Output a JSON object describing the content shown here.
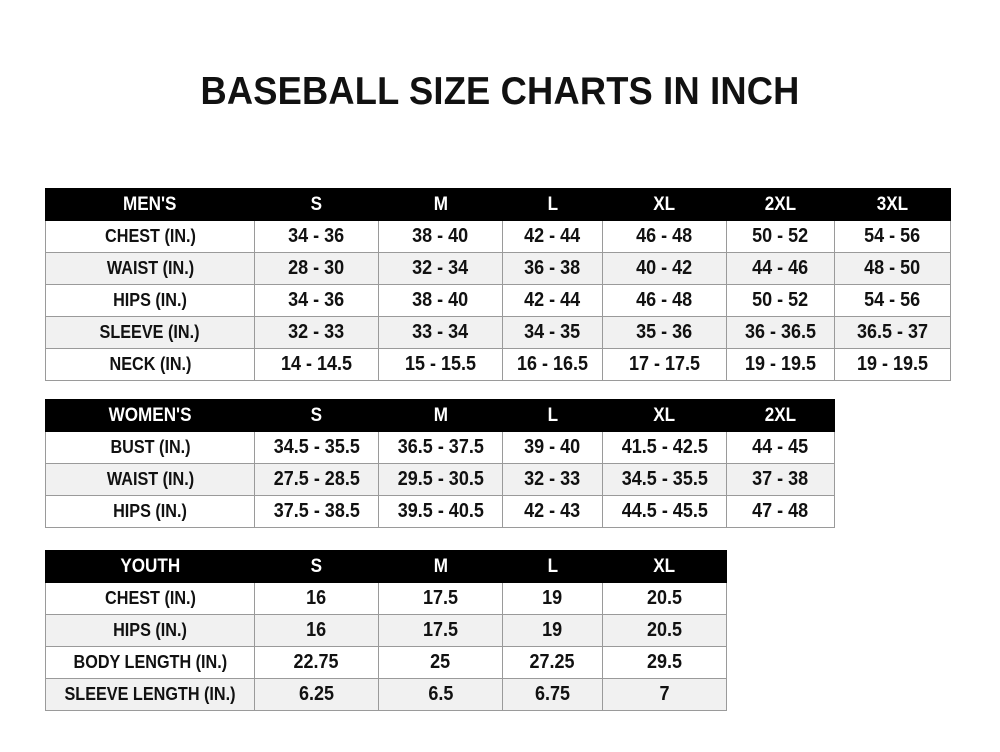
{
  "title": "BASEBALL SIZE CHARTS IN INCH",
  "tables": [
    {
      "id": "men",
      "header": [
        "MEN'S",
        "S",
        "M",
        "L",
        "XL",
        "2XL",
        "3XL"
      ],
      "rows": [
        [
          "CHEST (IN.)",
          "34 - 36",
          "38 - 40",
          "42 - 44",
          "46 - 48",
          "50 - 52",
          "54 - 56"
        ],
        [
          "WAIST (IN.)",
          "28 - 30",
          "32 - 34",
          "36 - 38",
          "40 - 42",
          "44 - 46",
          "48 - 50"
        ],
        [
          "HIPS (IN.)",
          "34 - 36",
          "38 - 40",
          "42 - 44",
          "46 - 48",
          "50 - 52",
          "54 - 56"
        ],
        [
          "SLEEVE (IN.)",
          "32 - 33",
          "33 - 34",
          "34 - 35",
          "35 - 36",
          "36 - 36.5",
          "36.5 - 37"
        ],
        [
          "NECK (IN.)",
          "14 - 14.5",
          "15 - 15.5",
          "16 - 16.5",
          "17 - 17.5",
          "19 - 19.5",
          "19 - 19.5"
        ]
      ]
    },
    {
      "id": "women",
      "header": [
        "WOMEN'S",
        "S",
        "M",
        "L",
        "XL",
        "2XL"
      ],
      "rows": [
        [
          "BUST (IN.)",
          "34.5 - 35.5",
          "36.5 - 37.5",
          "39 - 40",
          "41.5 - 42.5",
          "44 - 45"
        ],
        [
          "WAIST (IN.)",
          "27.5 - 28.5",
          "29.5 - 30.5",
          "32 - 33",
          "34.5 - 35.5",
          "37 - 38"
        ],
        [
          "HIPS (IN.)",
          "37.5 - 38.5",
          "39.5 - 40.5",
          "42 - 43",
          "44.5 - 45.5",
          "47 - 48"
        ]
      ]
    },
    {
      "id": "youth",
      "header": [
        "YOUTH",
        "S",
        "M",
        "L",
        "XL"
      ],
      "rows": [
        [
          "CHEST (IN.)",
          "16",
          "17.5",
          "19",
          "20.5"
        ],
        [
          "HIPS (IN.)",
          "16",
          "17.5",
          "19",
          "20.5"
        ],
        [
          "BODY LENGTH (IN.)",
          "22.75",
          "25",
          "27.25",
          "29.5"
        ],
        [
          "SLEEVE LENGTH (IN.)",
          "6.25",
          "6.5",
          "6.75",
          "7"
        ]
      ]
    }
  ],
  "colors": {
    "header_bg": "#000000",
    "header_text": "#ffffff",
    "alt_row": "#f1f1f1"
  }
}
